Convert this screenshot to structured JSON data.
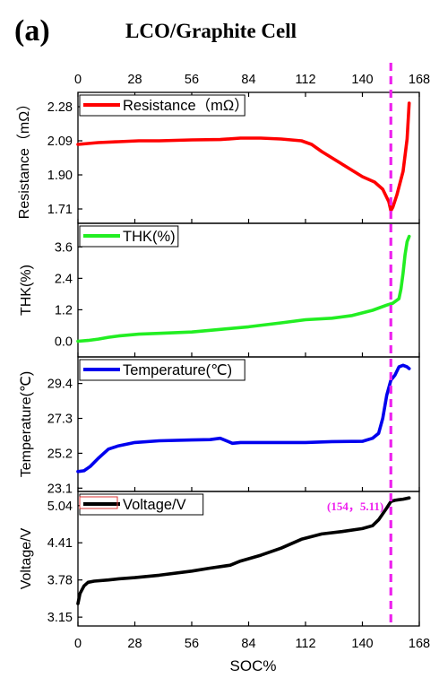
{
  "figure": {
    "panel_label": "(a)",
    "title": "LCO/Graphite Cell"
  },
  "chart_data": {
    "type": "line",
    "x_label": "SOC%",
    "x_range": [
      0,
      168
    ],
    "x_ticks": [
      0,
      28,
      56,
      84,
      112,
      140,
      168
    ],
    "marker_x": 154,
    "marker_color": "#ee22ee",
    "panels": [
      {
        "id": "resistance",
        "ylabel": "Resistance（mΩ）",
        "legend": "Resistance（mΩ）",
        "color": "#ff0000",
        "ylim": [
          1.63,
          2.36
        ],
        "yticks": [
          "1.71",
          "1.90",
          "2.09",
          "2.28"
        ],
        "x": [
          0,
          5,
          10,
          20,
          30,
          40,
          56,
          70,
          80,
          90,
          100,
          110,
          115,
          120,
          130,
          140,
          146,
          150,
          153,
          154,
          155,
          157,
          160,
          162,
          163
        ],
        "values": [
          2.07,
          2.075,
          2.08,
          2.085,
          2.09,
          2.09,
          2.095,
          2.097,
          2.105,
          2.105,
          2.1,
          2.09,
          2.07,
          2.03,
          1.96,
          1.89,
          1.86,
          1.82,
          1.75,
          1.7,
          1.72,
          1.79,
          1.92,
          2.1,
          2.3
        ]
      },
      {
        "id": "thk",
        "ylabel": "THK(%)",
        "legend": "THK(%)",
        "color": "#22ee22",
        "ylim": [
          -0.6,
          4.5
        ],
        "yticks": [
          "0.0",
          "1.2",
          "2.4",
          "3.6"
        ],
        "x": [
          0,
          5,
          10,
          15,
          20,
          30,
          40,
          56,
          70,
          84,
          100,
          112,
          125,
          135,
          145,
          152,
          155,
          158,
          159,
          160,
          161,
          162,
          163
        ],
        "values": [
          0.0,
          0.03,
          0.08,
          0.15,
          0.2,
          0.27,
          0.3,
          0.35,
          0.45,
          0.55,
          0.7,
          0.82,
          0.88,
          0.98,
          1.18,
          1.38,
          1.45,
          1.62,
          2.0,
          2.6,
          3.3,
          3.8,
          4.0
        ]
      },
      {
        "id": "temperature",
        "ylabel": "Temperature(℃)",
        "legend": "Temperature(℃)",
        "color": "#0000ee",
        "ylim": [
          22.9,
          31.0
        ],
        "yticks": [
          "23.1",
          "25.2",
          "27.3",
          "29.4"
        ],
        "x": [
          0,
          3,
          6,
          10,
          15,
          20,
          28,
          40,
          56,
          65,
          70,
          76,
          80,
          90,
          100,
          112,
          125,
          140,
          145,
          148,
          150,
          152,
          154,
          156,
          158,
          160,
          162,
          163
        ],
        "values": [
          24.1,
          24.15,
          24.4,
          24.9,
          25.45,
          25.65,
          25.85,
          25.95,
          26.0,
          26.02,
          26.1,
          25.8,
          25.85,
          25.85,
          25.85,
          25.85,
          25.9,
          25.92,
          26.1,
          26.4,
          27.3,
          28.7,
          29.6,
          29.9,
          30.4,
          30.5,
          30.4,
          30.3
        ]
      },
      {
        "id": "voltage",
        "ylabel": "Voltage/V",
        "legend": "Voltage/V",
        "color": "#000000",
        "ylim": [
          3.0,
          5.28
        ],
        "yticks": [
          "3.15",
          "3.78",
          "4.41",
          "5.04"
        ],
        "x": [
          0,
          1,
          3,
          5,
          8,
          15,
          20,
          28,
          40,
          56,
          65,
          75,
          80,
          90,
          100,
          110,
          120,
          130,
          140,
          145,
          148,
          152,
          154,
          156,
          158,
          160,
          163
        ],
        "values": [
          3.38,
          3.55,
          3.68,
          3.74,
          3.76,
          3.78,
          3.8,
          3.82,
          3.86,
          3.93,
          3.98,
          4.03,
          4.1,
          4.2,
          4.32,
          4.47,
          4.56,
          4.6,
          4.65,
          4.7,
          4.8,
          5.0,
          5.11,
          5.13,
          5.14,
          5.15,
          5.17
        ]
      }
    ],
    "annotation": "(154，5.11)",
    "annotation_color": "#ee22ee"
  }
}
